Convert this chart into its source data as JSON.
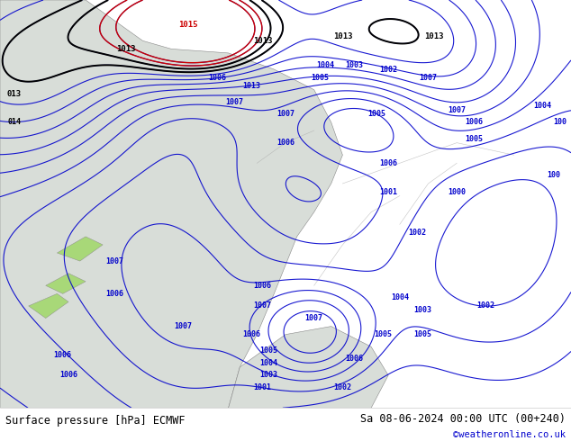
{
  "title_left": "Surface pressure [hPa] ECMWF",
  "title_right": "Sa 08-06-2024 00:00 UTC (00+240)",
  "watermark": "©weatheronline.co.uk",
  "bg_color": "#a8d878",
  "ocean_color": "#d8ddd8",
  "land_highlight": "#b8e890",
  "contour_color_blue": "#0000cc",
  "contour_color_black": "#000000",
  "contour_color_red": "#cc0000",
  "footer_bg": "#ffffff",
  "footer_text_color": "#000000",
  "watermark_color": "#0000cc",
  "figsize": [
    6.34,
    4.9
  ],
  "dpi": 100
}
